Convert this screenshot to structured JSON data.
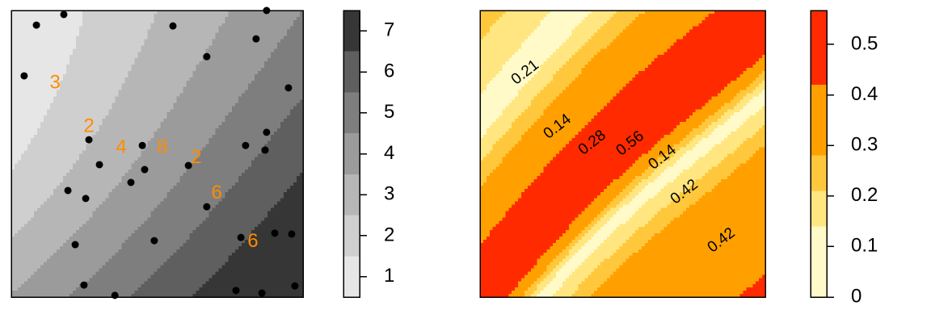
{
  "chart_data": [
    {
      "type": "filled_contour",
      "levels": [
        0.5,
        1.5,
        2.5,
        3.5,
        4.5,
        5.5,
        6.5,
        7.5
      ],
      "colors": [
        "#e6e6e6",
        "#cfcfcf",
        "#b6b6b6",
        "#9b9b9b",
        "#7e7e7e",
        "#5f5f5f",
        "#363636"
      ],
      "zlim": [
        0.5,
        7.5
      ],
      "zticks": [
        1,
        2,
        3,
        4,
        5,
        6,
        7
      ],
      "xlim": [
        0,
        100
      ],
      "ylim": [
        0,
        100
      ],
      "points": {
        "color": "#000000",
        "x": [
          18.0,
          8.6,
          87.5,
          55.4,
          83.9,
          67.0,
          4.4,
          95.0,
          26.6,
          44.9,
          87.5,
          80.3,
          87.0,
          30.2,
          45.7,
          60.7,
          41.0,
          19.4,
          25.5,
          67.0,
          21.9,
          49.0,
          78.7,
          90.3,
          96.1,
          24.9,
          35.5,
          77.0,
          85.9,
          97.2
        ],
        "y": [
          98.6,
          94.9,
          100,
          94.6,
          90.1,
          83.9,
          77.2,
          73.0,
          54.9,
          52.9,
          57.5,
          52.9,
          51.3,
          46.2,
          44.5,
          45.9,
          40.0,
          37.2,
          34.4,
          31.5,
          18.3,
          19.7,
          20.8,
          22.3,
          22.0,
          4.2,
          0.6,
          2.3,
          1.4,
          3.9
        ]
      },
      "point_labels": {
        "color": "#ff8c00",
        "labels": [
          "3",
          "2",
          "4",
          "8",
          "2",
          "6",
          "6"
        ],
        "x": [
          15.0,
          26.6,
          37.7,
          51.8,
          63.4,
          70.4,
          82.8
        ],
        "y": [
          74.6,
          59.4,
          52.1,
          52.1,
          48.5,
          36.1,
          19.2
        ]
      }
    },
    {
      "type": "filled_contour",
      "levels": [
        0,
        0.14,
        0.21,
        0.28,
        0.42,
        0.567
      ],
      "colors": [
        "#fffac8",
        "#ffe680",
        "#ffc83c",
        "#ffa000",
        "#ff2a00"
      ],
      "zlim": [
        0,
        0.567
      ],
      "zticks": [
        0,
        0.1,
        0.2,
        0.3,
        0.4,
        0.5
      ],
      "xlim": [
        0,
        100
      ],
      "ylim": [
        0,
        100
      ],
      "contour_labels": {
        "color": "#000000",
        "labels": [
          "0.21",
          "0.14",
          "0.28",
          "0.56",
          "0.14",
          "0.42",
          "0.42"
        ],
        "x": [
          15.9,
          27.2,
          39.4,
          52.7,
          64.0,
          71.7,
          84.7
        ],
        "y": [
          78.3,
          59.4,
          53.8,
          53.5,
          48.7,
          36.6,
          19.7
        ]
      }
    }
  ]
}
